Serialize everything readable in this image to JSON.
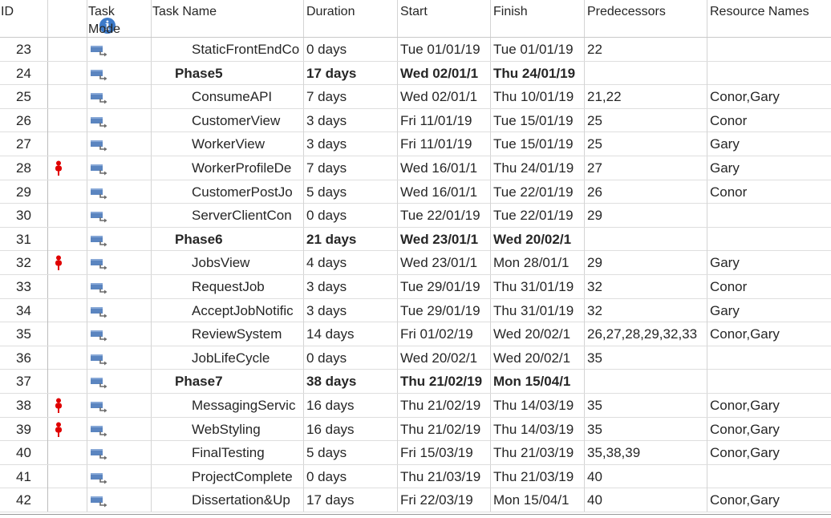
{
  "headers": {
    "id": "ID",
    "indicators_icon": "info-icon",
    "task_mode": "Task\nMode",
    "task_name": "Task Name",
    "duration": "Duration",
    "start": "Start",
    "finish": "Finish",
    "predecessors": "Predecessors",
    "resource_names": "Resource Names"
  },
  "colors": {
    "info": "#3c7ac9",
    "indicator": "#e00000",
    "mode_icon": "#5b85c0"
  },
  "rows": [
    {
      "id": "23",
      "indicator": "",
      "name": "StaticFrontEndCo",
      "summary": false,
      "duration": "0 days",
      "start": "Tue 01/01/19",
      "finish": "Tue 01/01/19",
      "pred": "22",
      "res": ""
    },
    {
      "id": "24",
      "indicator": "",
      "name": "Phase5",
      "summary": true,
      "duration": "17 days",
      "start": "Wed 02/01/1",
      "finish": "Thu 24/01/19",
      "pred": "",
      "res": ""
    },
    {
      "id": "25",
      "indicator": "",
      "name": "ConsumeAPI",
      "summary": false,
      "duration": "7 days",
      "start": "Wed 02/01/1",
      "finish": "Thu 10/01/19",
      "pred": "21,22",
      "res": "Conor,Gary"
    },
    {
      "id": "26",
      "indicator": "",
      "name": "CustomerView",
      "summary": false,
      "duration": "3 days",
      "start": "Fri 11/01/19",
      "finish": "Tue 15/01/19",
      "pred": "25",
      "res": "Conor"
    },
    {
      "id": "27",
      "indicator": "",
      "name": "WorkerView",
      "summary": false,
      "duration": "3 days",
      "start": "Fri 11/01/19",
      "finish": "Tue 15/01/19",
      "pred": "25",
      "res": "Gary"
    },
    {
      "id": "28",
      "indicator": "person-icon",
      "name": "WorkerProfileDe",
      "summary": false,
      "duration": "7 days",
      "start": "Wed 16/01/1",
      "finish": "Thu 24/01/19",
      "pred": "27",
      "res": "Gary"
    },
    {
      "id": "29",
      "indicator": "",
      "name": "CustomerPostJo",
      "summary": false,
      "duration": "5 days",
      "start": "Wed 16/01/1",
      "finish": "Tue 22/01/19",
      "pred": "26",
      "res": "Conor"
    },
    {
      "id": "30",
      "indicator": "",
      "name": "ServerClientCon",
      "summary": false,
      "duration": "0 days",
      "start": "Tue 22/01/19",
      "finish": "Tue 22/01/19",
      "pred": "29",
      "res": ""
    },
    {
      "id": "31",
      "indicator": "",
      "name": "Phase6",
      "summary": true,
      "duration": "21 days",
      "start": "Wed 23/01/1",
      "finish": "Wed 20/02/1",
      "pred": "",
      "res": ""
    },
    {
      "id": "32",
      "indicator": "person-icon",
      "name": "JobsView",
      "summary": false,
      "duration": "4 days",
      "start": "Wed 23/01/1",
      "finish": "Mon 28/01/1",
      "pred": "29",
      "res": "Gary"
    },
    {
      "id": "33",
      "indicator": "",
      "name": "RequestJob",
      "summary": false,
      "duration": "3 days",
      "start": "Tue 29/01/19",
      "finish": "Thu 31/01/19",
      "pred": "32",
      "res": "Conor"
    },
    {
      "id": "34",
      "indicator": "",
      "name": "AcceptJobNotific",
      "summary": false,
      "duration": "3 days",
      "start": "Tue 29/01/19",
      "finish": "Thu 31/01/19",
      "pred": "32",
      "res": "Gary"
    },
    {
      "id": "35",
      "indicator": "",
      "name": "ReviewSystem",
      "summary": false,
      "duration": "14 days",
      "start": "Fri 01/02/19",
      "finish": "Wed 20/02/1",
      "pred": "26,27,28,29,32,33",
      "res": "Conor,Gary"
    },
    {
      "id": "36",
      "indicator": "",
      "name": "JobLifeCycle",
      "summary": false,
      "duration": "0 days",
      "start": "Wed 20/02/1",
      "finish": "Wed 20/02/1",
      "pred": "35",
      "res": ""
    },
    {
      "id": "37",
      "indicator": "",
      "name": "Phase7",
      "summary": true,
      "duration": "38 days",
      "start": "Thu 21/02/19",
      "finish": "Mon 15/04/1",
      "pred": "",
      "res": ""
    },
    {
      "id": "38",
      "indicator": "person-icon",
      "name": "MessagingServic",
      "summary": false,
      "duration": "16 days",
      "start": "Thu 21/02/19",
      "finish": "Thu 14/03/19",
      "pred": "35",
      "res": "Conor,Gary"
    },
    {
      "id": "39",
      "indicator": "person-icon",
      "name": "WebStyling",
      "summary": false,
      "duration": "16 days",
      "start": "Thu 21/02/19",
      "finish": "Thu 14/03/19",
      "pred": "35",
      "res": "Conor,Gary"
    },
    {
      "id": "40",
      "indicator": "",
      "name": "FinalTesting",
      "summary": false,
      "duration": "5 days",
      "start": "Fri 15/03/19",
      "finish": "Thu 21/03/19",
      "pred": "35,38,39",
      "res": "Conor,Gary"
    },
    {
      "id": "41",
      "indicator": "",
      "name": "ProjectComplete",
      "summary": false,
      "duration": "0 days",
      "start": "Thu 21/03/19",
      "finish": "Thu 21/03/19",
      "pred": "40",
      "res": ""
    },
    {
      "id": "42",
      "indicator": "",
      "name": "Dissertation&Up",
      "summary": false,
      "duration": "17 days",
      "start": "Fri 22/03/19",
      "finish": "Mon 15/04/1",
      "pred": "40",
      "res": "Conor,Gary"
    }
  ]
}
